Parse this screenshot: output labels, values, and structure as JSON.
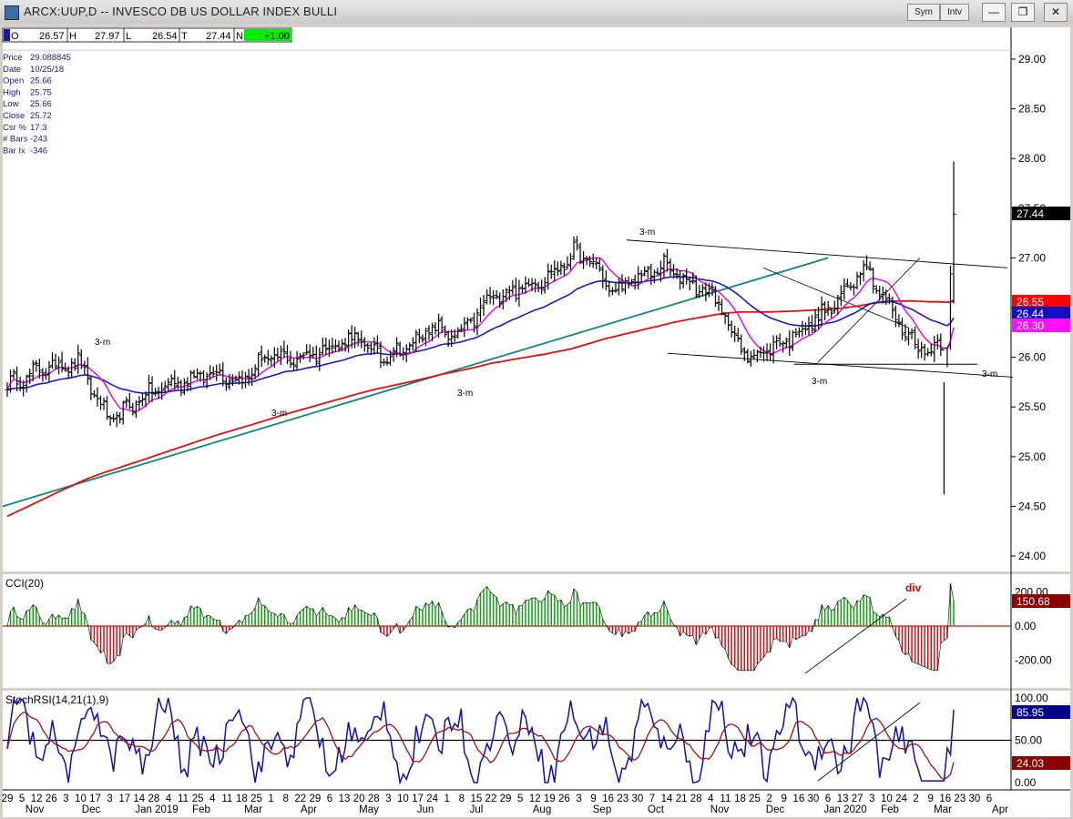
{
  "window": {
    "title": "ARCX:UUP,D -- INVESCO DB US DOLLAR INDEX BULLI",
    "sym_label": "Sym",
    "int_label": "Intv",
    "minimize_label": "—",
    "restore_label": "❐",
    "close_label": "✕"
  },
  "ohlc_bar": {
    "o_label": "O",
    "o_value": "26.57",
    "h_label": "H",
    "h_value": "27.97",
    "l_label": "L",
    "l_value": "26.54",
    "c_label": "T",
    "c_value": "27.44",
    "n_label": "N",
    "n_value": "+1.00"
  },
  "info_box": [
    {
      "label": "Price",
      "value": "29.088845"
    },
    {
      "label": "Date",
      "value": "10/25/18"
    },
    {
      "label": "Open",
      "value": "25.66"
    },
    {
      "label": "High",
      "value": "25.75"
    },
    {
      "label": "Low",
      "value": "25.66"
    },
    {
      "label": "Close",
      "value": "25.72"
    },
    {
      "label": "Csr %",
      "value": "17.3"
    },
    {
      "label": "# Bars",
      "value": "-243"
    },
    {
      "label": "Bar Ix",
      "value": "-346"
    }
  ],
  "colors": {
    "ma_fast": "#e800e8",
    "ma_mid": "#1a1acc",
    "ma_slow": "#e01010",
    "trendline": "#108880",
    "cci_pos": "#10a010",
    "cci_neg": "#d01010",
    "stoch_k": "#1010b0",
    "stoch_d": "#a01010",
    "last_price_tag": "#000000",
    "price_axis_bg": "#ffffff"
  },
  "chart_data": [
    {
      "type": "ohlc",
      "title": "",
      "ylim": [
        23.7,
        29.4
      ],
      "y_ticks": [
        "29.00",
        "28.50",
        "28.00",
        "27.50",
        "27.00",
        "26.50",
        "26.00",
        "25.50",
        "25.00",
        "24.50",
        "24.00"
      ],
      "price_tags": [
        {
          "value": "27.44",
          "color": "#000000"
        },
        {
          "value": "26.55",
          "color": "#ff0000"
        },
        {
          "value": "26.44",
          "color": "#1010c0"
        },
        {
          "value": "26.30",
          "color": "#ff10ff"
        }
      ],
      "annotations": [
        "3-m",
        "3-m",
        "3-m",
        "3-m",
        "3-m",
        "3-m"
      ],
      "series": [
        {
          "name": "Price",
          "close_waypoints": [
            [
              0,
              25.72
            ],
            [
              12,
              25.9
            ],
            [
              22,
              25.95
            ],
            [
              28,
              25.58
            ],
            [
              32,
              25.35
            ],
            [
              42,
              25.6
            ],
            [
              50,
              25.72
            ],
            [
              58,
              25.8
            ],
            [
              66,
              25.85
            ],
            [
              72,
              25.75
            ],
            [
              80,
              26.0
            ],
            [
              90,
              25.98
            ],
            [
              100,
              26.1
            ],
            [
              108,
              26.2
            ],
            [
              116,
              26.0
            ],
            [
              124,
              26.1
            ],
            [
              132,
              26.3
            ],
            [
              140,
              26.2
            ],
            [
              150,
              26.6
            ],
            [
              160,
              26.7
            ],
            [
              170,
              26.85
            ],
            [
              176,
              27.05
            ],
            [
              182,
              26.95
            ],
            [
              188,
              26.65
            ],
            [
              196,
              26.8
            ],
            [
              204,
              26.92
            ],
            [
              212,
              26.75
            ],
            [
              220,
              26.6
            ],
            [
              226,
              26.2
            ],
            [
              230,
              26.0
            ],
            [
              238,
              26.1
            ],
            [
              248,
              26.3
            ],
            [
              258,
              26.55
            ],
            [
              266,
              26.95
            ],
            [
              274,
              26.5
            ],
            [
              280,
              26.2
            ],
            [
              286,
              26.05
            ],
            [
              292,
              26.2
            ],
            [
              294,
              27.44
            ]
          ]
        }
      ]
    },
    {
      "type": "bar",
      "title": "CCI(20)",
      "ylim": [
        -280,
        260
      ],
      "y_ticks": [
        "200.00",
        "0.00",
        "-200.00"
      ],
      "last_value": "150.68",
      "annotation": "div"
    },
    {
      "type": "line",
      "title": "StochRSI(14,21(1),9)",
      "ylim": [
        0,
        100
      ],
      "y_ticks": [
        "100.00",
        "50.00",
        "0.00"
      ],
      "last_k": "85.95",
      "last_d": "24.03"
    }
  ],
  "x_axis": {
    "day_ticks": [
      "29",
      "5",
      "12",
      "26",
      "3",
      "10",
      "17",
      "3",
      "17",
      "14",
      "28",
      "4",
      "11",
      "25",
      "4",
      "11",
      "18",
      "25",
      "1",
      "8",
      "22",
      "29",
      "6",
      "13",
      "20",
      "28",
      "3",
      "10",
      "17",
      "24",
      "1",
      "8",
      "15",
      "22",
      "29",
      "5",
      "12",
      "19",
      "26",
      "3",
      "9",
      "16",
      "23",
      "30",
      "7",
      "14",
      "21",
      "28",
      "4",
      "11",
      "18",
      "25",
      "2",
      "9",
      "16",
      "30",
      "6",
      "13",
      "27",
      "3",
      "10",
      "24",
      "2",
      "9",
      "16",
      "23",
      "30",
      "6"
    ],
    "month_ticks": [
      "Nov",
      "Dec",
      "Jan 2019",
      "Feb",
      "Mar",
      "Apr",
      "May",
      "Jun",
      "Jul",
      "Aug",
      "Sep",
      "Oct",
      "Nov",
      "Dec",
      "Jan 2020",
      "Feb",
      "Mar",
      "Apr"
    ]
  }
}
